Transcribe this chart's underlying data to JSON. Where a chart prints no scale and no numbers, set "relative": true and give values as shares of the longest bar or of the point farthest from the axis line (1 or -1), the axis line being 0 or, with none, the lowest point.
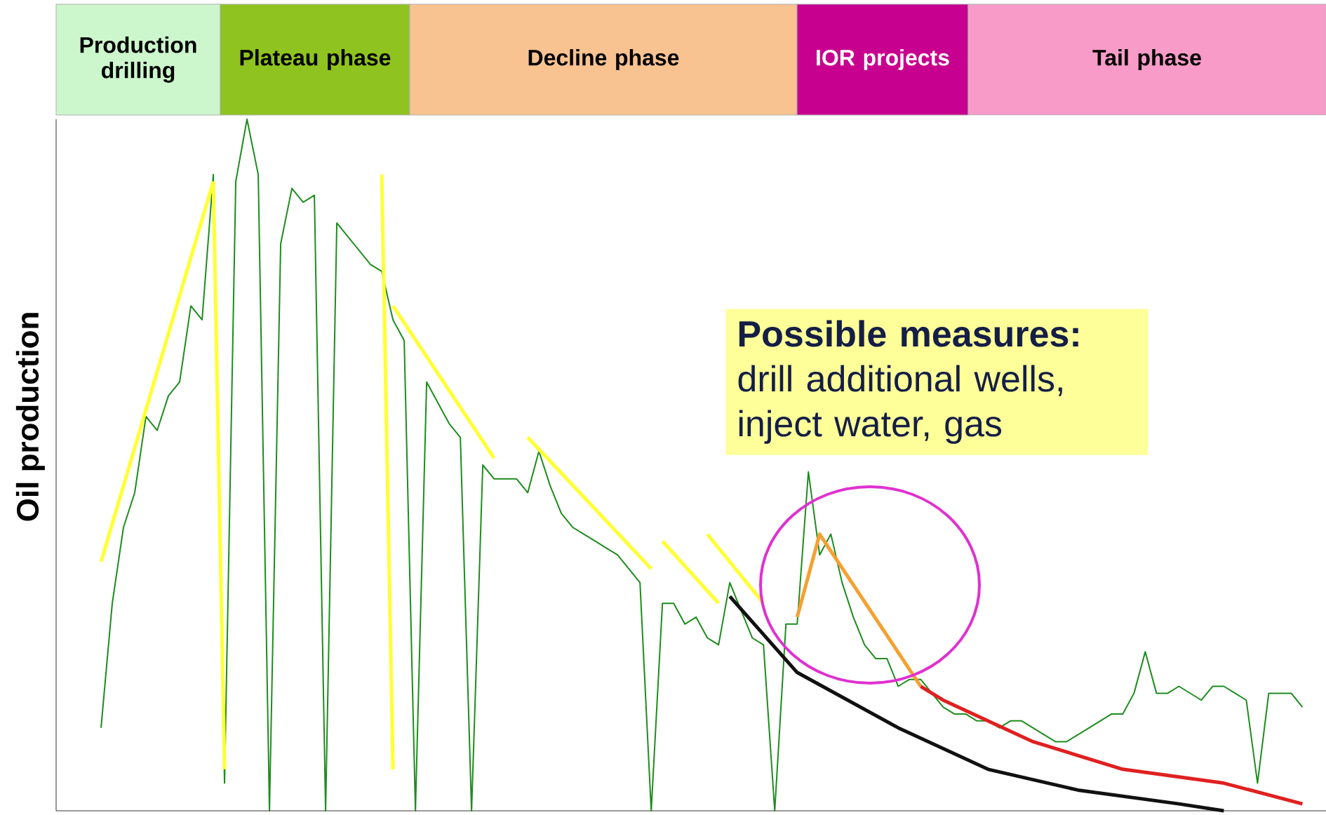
{
  "chart_data": {
    "type": "line",
    "relative": true,
    "ylabel": "Oil production",
    "categories": [
      null,
      null,
      null,
      null,
      null,
      null,
      null,
      null,
      null,
      null,
      null,
      null,
      null,
      null,
      null,
      null,
      null,
      null,
      null,
      null,
      null,
      null,
      null,
      null,
      null,
      null,
      null,
      null,
      null,
      null,
      null,
      null,
      null,
      null,
      null,
      null,
      null,
      null,
      null,
      null,
      null,
      null,
      null,
      null,
      null,
      null,
      null,
      null,
      null,
      null,
      null,
      null,
      null,
      null,
      null,
      null,
      null,
      null,
      null,
      null,
      null,
      null,
      null,
      null,
      null,
      null,
      null,
      null,
      null,
      null,
      null,
      null,
      null,
      null,
      null,
      null,
      null,
      null,
      null,
      null,
      null,
      null,
      null,
      null,
      null,
      null,
      null,
      null,
      null,
      null,
      null,
      null,
      null,
      null,
      null,
      null,
      null,
      null,
      null,
      null,
      null,
      null,
      null,
      null,
      null,
      null,
      null,
      null
    ],
    "series": [
      {
        "color": "#1e8c1e",
        "values": [
          0.12,
          0.3,
          0.41,
          0.46,
          0.57,
          0.55,
          0.6,
          0.62,
          0.73,
          0.71,
          0.92,
          0.04,
          0.91,
          1.0,
          0.92,
          0.0,
          0.82,
          0.9,
          0.88,
          0.89,
          0.0,
          0.85,
          0.83,
          0.81,
          0.79,
          0.78,
          0.71,
          0.68,
          0.0,
          0.62,
          0.59,
          0.56,
          0.54,
          0.0,
          0.5,
          0.48,
          0.48,
          0.48,
          0.46,
          0.52,
          0.47,
          0.43,
          0.41,
          0.4,
          0.39,
          0.38,
          0.37,
          0.35,
          0.33,
          0.0,
          0.3,
          0.3,
          0.27,
          0.28,
          0.25,
          0.24,
          0.33,
          0.29,
          0.25,
          0.24,
          0.0,
          0.27,
          0.27,
          0.49,
          0.37,
          0.4,
          0.33,
          0.28,
          0.24,
          0.22,
          0.22,
          0.18,
          0.19,
          0.19,
          0.17,
          0.15,
          0.14,
          0.14,
          0.13,
          0.13,
          0.12,
          0.13,
          0.13,
          0.12,
          0.11,
          0.1,
          0.1,
          0.11,
          0.12,
          0.13,
          0.14,
          0.14,
          0.17,
          0.23,
          0.17,
          0.17,
          0.18,
          0.17,
          0.16,
          0.18,
          0.18,
          0.17,
          0.16,
          0.04,
          0.17,
          0.17,
          0.17,
          0.15
        ]
      },
      {
        "color": "#ffff33",
        "values": [
          0.36,
          null,
          null,
          null,
          null,
          null,
          null,
          null,
          null,
          null,
          0.91,
          null,
          null,
          null,
          null,
          null,
          null,
          null,
          null,
          null,
          null,
          null,
          null,
          null,
          null,
          null,
          null,
          null,
          null,
          null,
          null,
          null,
          null,
          null,
          null,
          null,
          null,
          null,
          null,
          null,
          null,
          null,
          null,
          null,
          null,
          null,
          null,
          null,
          null,
          null,
          null,
          null,
          null,
          null,
          null,
          null,
          null,
          null,
          null,
          null,
          null,
          null,
          null,
          null,
          null,
          null,
          null,
          null,
          null,
          null,
          null,
          null,
          null,
          null,
          null,
          null,
          null,
          null,
          null,
          null,
          null,
          null,
          null,
          null,
          null,
          null,
          null,
          null,
          null,
          null,
          null,
          null,
          null,
          null,
          null,
          null,
          null,
          null,
          null,
          null,
          null,
          null,
          null,
          null,
          null,
          null,
          null,
          null
        ]
      },
      {
        "color": "#ffff33",
        "values": [
          null,
          null,
          null,
          null,
          null,
          null,
          null,
          null,
          null,
          null,
          0.91,
          0.06,
          null,
          null,
          null,
          null,
          null,
          null,
          null,
          null,
          null,
          null,
          null,
          null,
          null,
          null,
          null,
          null,
          null,
          null,
          null,
          null,
          null,
          null,
          null,
          null,
          null,
          null,
          null,
          null,
          null,
          null,
          null,
          null,
          null,
          null,
          null,
          null,
          null,
          null,
          null,
          null,
          null,
          null,
          null,
          null,
          null,
          null,
          null,
          null,
          null,
          null,
          null,
          null,
          null,
          null,
          null,
          null,
          null,
          null,
          null,
          null,
          null,
          null,
          null,
          null,
          null,
          null,
          null,
          null,
          null,
          null,
          null,
          null,
          null,
          null,
          null,
          null,
          null,
          null,
          null,
          null,
          null,
          null,
          null,
          null,
          null,
          null,
          null,
          null,
          null,
          null,
          null,
          null,
          null,
          null,
          null,
          null
        ]
      },
      {
        "color": "#ffff33",
        "values": [
          null,
          null,
          null,
          null,
          null,
          null,
          null,
          null,
          null,
          null,
          null,
          null,
          null,
          null,
          null,
          null,
          null,
          null,
          null,
          null,
          null,
          null,
          null,
          null,
          null,
          0.92,
          0.06,
          null,
          null,
          null,
          null,
          null,
          null,
          null,
          null,
          null,
          null,
          null,
          null,
          null,
          null,
          null,
          null,
          null,
          null,
          null,
          null,
          null,
          null,
          null,
          null,
          null,
          null,
          null,
          null,
          null,
          null,
          null,
          null,
          null,
          null,
          null,
          null,
          null,
          null,
          null,
          null,
          null,
          null,
          null,
          null,
          null,
          null,
          null,
          null,
          null,
          null,
          null,
          null,
          null,
          null,
          null,
          null,
          null,
          null,
          null,
          null,
          null,
          null,
          null,
          null,
          null,
          null,
          null,
          null,
          null,
          null,
          null,
          null,
          null,
          null,
          null,
          null,
          null,
          null,
          null,
          null,
          null
        ]
      },
      {
        "color": "#ffff33",
        "values": [
          null,
          null,
          null,
          null,
          null,
          null,
          null,
          null,
          null,
          null,
          null,
          null,
          null,
          null,
          null,
          null,
          null,
          null,
          null,
          null,
          null,
          null,
          null,
          null,
          null,
          null,
          0.73,
          null,
          null,
          null,
          null,
          null,
          null,
          null,
          null,
          0.51,
          null,
          null,
          null,
          null,
          null,
          null,
          null,
          null,
          null,
          null,
          null,
          null,
          null,
          null,
          null,
          null,
          null,
          null,
          null,
          null,
          null,
          null,
          null,
          null,
          null,
          null,
          null,
          null,
          null,
          null,
          null,
          null,
          null,
          null,
          null,
          null,
          null,
          null,
          null,
          null,
          null,
          null,
          null,
          null,
          null,
          null,
          null,
          null,
          null,
          null,
          null,
          null,
          null,
          null,
          null,
          null,
          null,
          null,
          null,
          null,
          null,
          null,
          null,
          null,
          null,
          null,
          null,
          null,
          null,
          null,
          null,
          null
        ]
      },
      {
        "color": "#ffff33",
        "values": [
          null,
          null,
          null,
          null,
          null,
          null,
          null,
          null,
          null,
          null,
          null,
          null,
          null,
          null,
          null,
          null,
          null,
          null,
          null,
          null,
          null,
          null,
          null,
          null,
          null,
          null,
          null,
          null,
          null,
          null,
          null,
          null,
          null,
          null,
          null,
          null,
          null,
          null,
          0.54,
          null,
          null,
          null,
          null,
          null,
          null,
          null,
          null,
          null,
          null,
          0.35,
          null,
          null,
          null,
          null,
          null,
          null,
          null,
          null,
          null,
          null,
          null,
          null,
          null,
          null,
          null,
          null,
          null,
          null,
          null,
          null,
          null,
          null,
          null,
          null,
          null,
          null,
          null,
          null,
          null,
          null,
          null,
          null,
          null,
          null,
          null,
          null,
          null,
          null,
          null,
          null,
          null,
          null,
          null,
          null,
          null,
          null,
          null,
          null,
          null,
          null,
          null,
          null,
          null,
          null,
          null,
          null,
          null,
          null
        ]
      },
      {
        "color": "#ffff33",
        "values": [
          null,
          null,
          null,
          null,
          null,
          null,
          null,
          null,
          null,
          null,
          null,
          null,
          null,
          null,
          null,
          null,
          null,
          null,
          null,
          null,
          null,
          null,
          null,
          null,
          null,
          null,
          null,
          null,
          null,
          null,
          null,
          null,
          null,
          null,
          null,
          null,
          null,
          null,
          null,
          null,
          null,
          null,
          null,
          null,
          null,
          null,
          null,
          null,
          null,
          null,
          0.39,
          null,
          null,
          null,
          null,
          0.3,
          null,
          null,
          null,
          null,
          null,
          null,
          null,
          null,
          null,
          null,
          null,
          null,
          null,
          null,
          null,
          null,
          null,
          null,
          null,
          null,
          null,
          null,
          null,
          null,
          null,
          null,
          null,
          null,
          null,
          null,
          null,
          null,
          null,
          null,
          null,
          null,
          null,
          null,
          null,
          null,
          null,
          null,
          null,
          null,
          null,
          null,
          null,
          null,
          null,
          null,
          null,
          null
        ]
      },
      {
        "color": "#ffff33",
        "values": [
          null,
          null,
          null,
          null,
          null,
          null,
          null,
          null,
          null,
          null,
          null,
          null,
          null,
          null,
          null,
          null,
          null,
          null,
          null,
          null,
          null,
          null,
          null,
          null,
          null,
          null,
          null,
          null,
          null,
          null,
          null,
          null,
          null,
          null,
          null,
          null,
          null,
          null,
          null,
          null,
          null,
          null,
          null,
          null,
          null,
          null,
          null,
          null,
          null,
          null,
          null,
          null,
          null,
          null,
          0.4,
          null,
          null,
          null,
          null,
          0.3,
          null,
          null,
          null,
          null,
          null,
          null,
          null,
          null,
          null,
          null,
          null,
          null,
          null,
          null,
          null,
          null,
          null,
          null,
          null,
          null,
          null,
          null,
          null,
          null,
          null,
          null,
          null,
          null,
          null,
          null,
          null,
          null,
          null,
          null,
          null,
          null,
          null,
          null,
          null,
          null,
          null,
          null,
          null,
          null,
          null,
          null,
          null,
          null
        ]
      },
      {
        "color": "#111111",
        "values": [
          null,
          null,
          null,
          null,
          null,
          null,
          null,
          null,
          null,
          null,
          null,
          null,
          null,
          null,
          null,
          null,
          null,
          null,
          null,
          null,
          null,
          null,
          null,
          null,
          null,
          null,
          null,
          null,
          null,
          null,
          null,
          null,
          null,
          null,
          null,
          null,
          null,
          null,
          null,
          null,
          null,
          null,
          null,
          null,
          null,
          null,
          null,
          null,
          null,
          null,
          null,
          null,
          null,
          null,
          null,
          null,
          0.31,
          null,
          null,
          null,
          null,
          null,
          0.2,
          null,
          null,
          null,
          null,
          null,
          null,
          null,
          null,
          0.12,
          null,
          null,
          null,
          null,
          null,
          null,
          null,
          0.06,
          null,
          null,
          null,
          null,
          null,
          null,
          null,
          0.03,
          null,
          null,
          null,
          null,
          null,
          null,
          null,
          null,
          0.01,
          null,
          null,
          null,
          0.0,
          null,
          null,
          null,
          null,
          null,
          null,
          null
        ]
      },
      {
        "color": "#f5a030",
        "values": [
          null,
          null,
          null,
          null,
          null,
          null,
          null,
          null,
          null,
          null,
          null,
          null,
          null,
          null,
          null,
          null,
          null,
          null,
          null,
          null,
          null,
          null,
          null,
          null,
          null,
          null,
          null,
          null,
          null,
          null,
          null,
          null,
          null,
          null,
          null,
          null,
          null,
          null,
          null,
          null,
          null,
          null,
          null,
          null,
          null,
          null,
          null,
          null,
          null,
          null,
          null,
          null,
          null,
          null,
          null,
          null,
          null,
          null,
          null,
          null,
          null,
          null,
          0.28,
          null,
          0.4,
          null,
          null,
          null,
          null,
          null,
          null,
          null,
          null,
          0.18,
          null,
          null,
          null,
          null,
          null,
          null,
          null,
          null,
          null,
          null,
          null,
          null,
          null,
          null,
          null,
          null,
          null,
          null,
          null,
          null,
          null,
          null,
          null,
          null,
          null,
          null,
          null,
          null,
          null,
          null,
          null,
          null,
          null,
          null
        ]
      },
      {
        "color": "#e02020",
        "values": [
          null,
          null,
          null,
          null,
          null,
          null,
          null,
          null,
          null,
          null,
          null,
          null,
          null,
          null,
          null,
          null,
          null,
          null,
          null,
          null,
          null,
          null,
          null,
          null,
          null,
          null,
          null,
          null,
          null,
          null,
          null,
          null,
          null,
          null,
          null,
          null,
          null,
          null,
          null,
          null,
          null,
          null,
          null,
          null,
          null,
          null,
          null,
          null,
          null,
          null,
          null,
          null,
          null,
          null,
          null,
          null,
          null,
          null,
          null,
          null,
          null,
          null,
          null,
          null,
          null,
          null,
          null,
          null,
          null,
          null,
          null,
          null,
          null,
          0.18,
          null,
          0.16,
          null,
          null,
          null,
          null,
          null,
          null,
          null,
          0.1,
          null,
          null,
          null,
          null,
          null,
          null,
          null,
          0.06,
          null,
          null,
          null,
          null,
          null,
          null,
          null,
          null,
          0.04,
          null,
          null,
          null,
          null,
          null,
          null,
          0.01
        ]
      }
    ],
    "annotations": [
      "Production drilling",
      "Plateau phase",
      "Decline phase",
      "IOR projects",
      "Tail phase",
      "**Possible measures:** drill additional wells, inject water, gas"
    ]
  }
}
